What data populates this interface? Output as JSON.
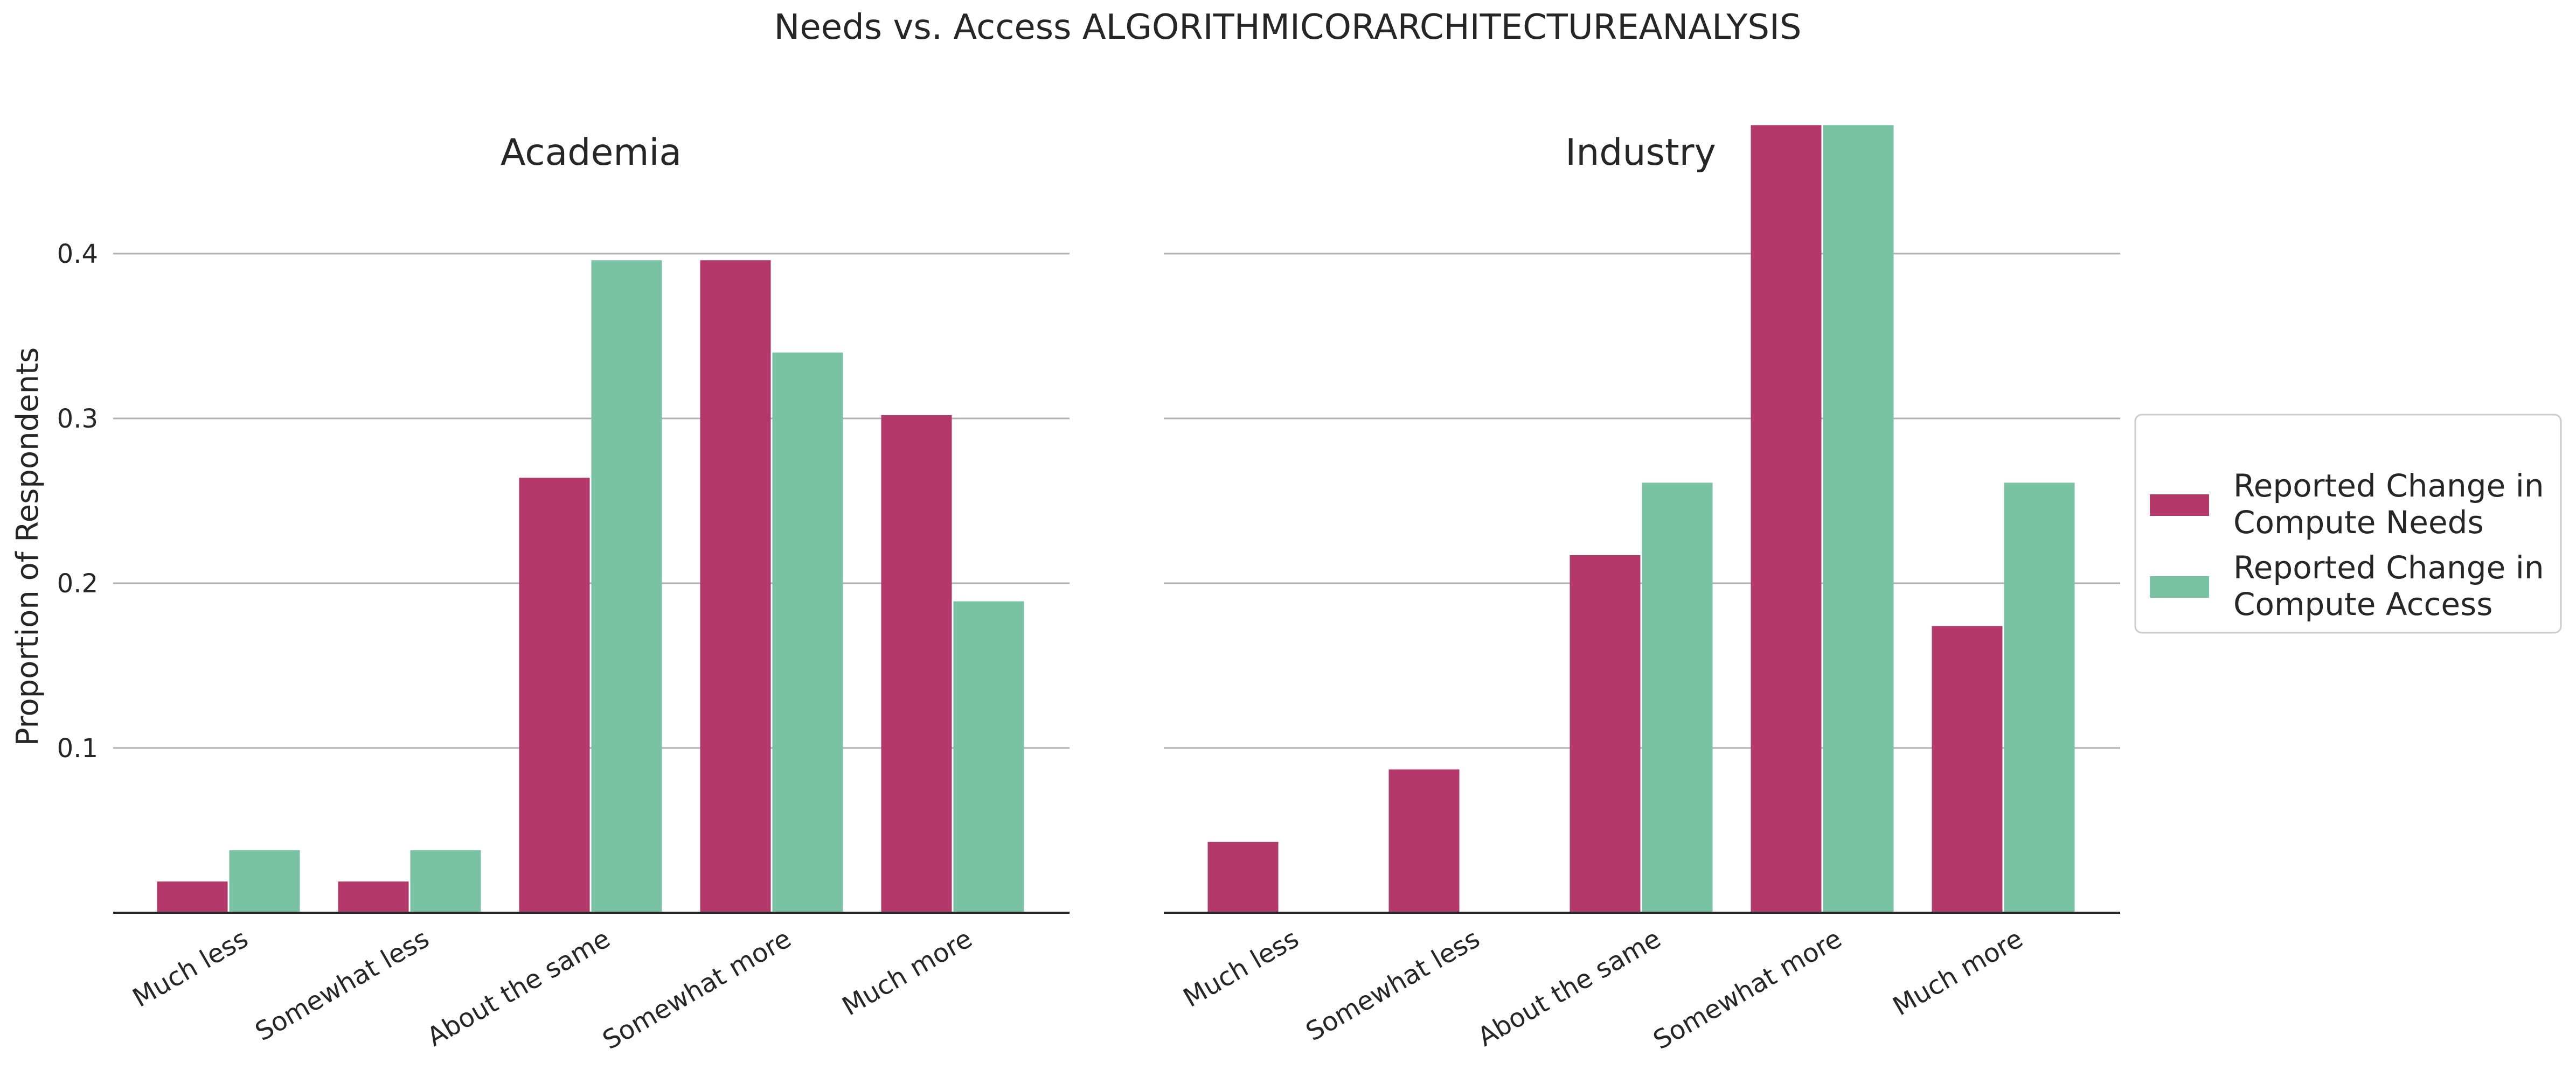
{
  "chart_data": {
    "type": "bar",
    "title": "Needs vs. Access ALGORITHMICORARCHITECTUREANALYSIS",
    "ylabel": "Proportion of Respondents",
    "categories": [
      "Much less",
      "Somewhat less",
      "About the same",
      "Somewhat more",
      "Much more"
    ],
    "yticks": [
      0.1,
      0.2,
      0.3,
      0.4
    ],
    "ylim": [
      0,
      0.5
    ],
    "grid": true,
    "legend_position": "right",
    "colors": {
      "needs": "#b5386b",
      "access": "#79c3a4"
    },
    "series_names": [
      "Reported Change in Compute Needs",
      "Reported Change in Compute Access"
    ],
    "panels": [
      {
        "title": "Academia",
        "series": [
          {
            "name": "Reported Change in Compute Needs",
            "values": [
              0.019,
              0.019,
              0.264,
              0.396,
              0.302
            ]
          },
          {
            "name": "Reported Change in Compute Access",
            "values": [
              0.038,
              0.038,
              0.396,
              0.34,
              0.189
            ]
          }
        ]
      },
      {
        "title": "Industry",
        "series": [
          {
            "name": "Reported Change in Compute Needs",
            "values": [
              0.043,
              0.087,
              0.217,
              0.478,
              0.174
            ]
          },
          {
            "name": "Reported Change in Compute Access",
            "values": [
              0.0,
              0.0,
              0.261,
              0.478,
              0.261
            ]
          }
        ]
      }
    ]
  }
}
